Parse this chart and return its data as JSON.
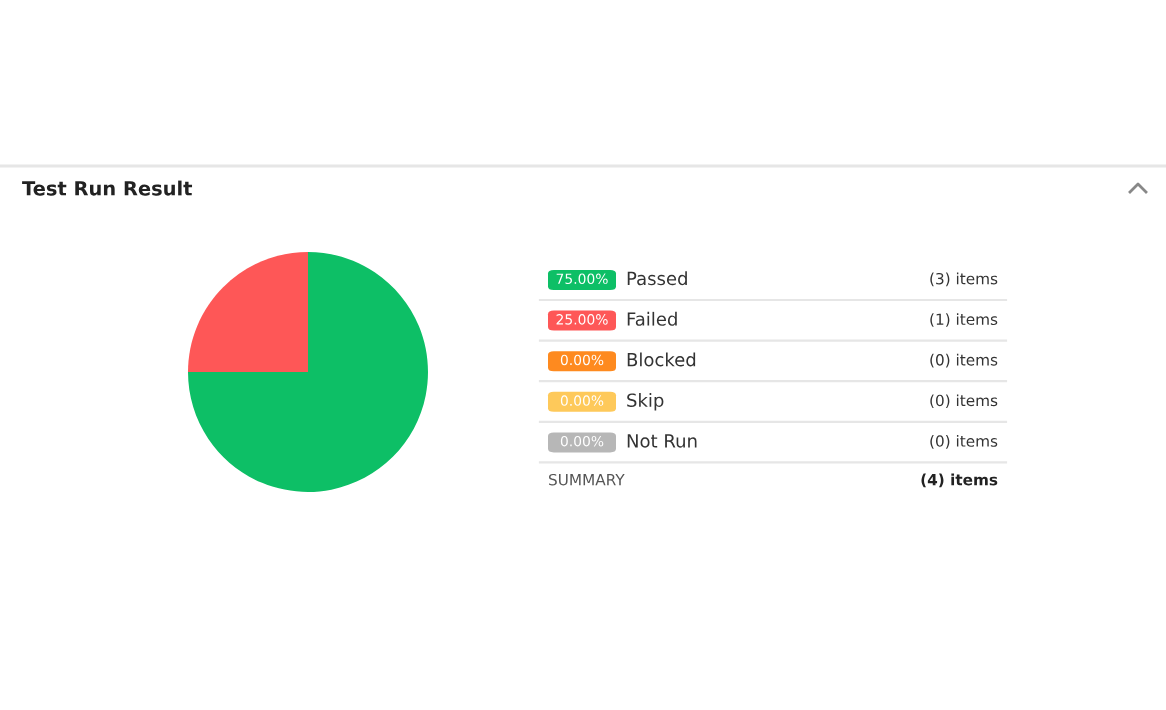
{
  "chart_data": {
    "type": "pie",
    "title": "Test Run Result",
    "categories": [
      "Passed",
      "Failed",
      "Blocked",
      "Skip",
      "Not Run"
    ],
    "values": [
      75,
      25,
      0,
      0,
      0
    ],
    "value_labels": [
      "75.00%",
      "25.00%",
      "0.00%",
      "0.00%",
      "0.00%"
    ],
    "colors": [
      "#0dbf66",
      "#fe5757",
      "#fe8a1f",
      "#fec95a",
      "#b7b7b7"
    ],
    "legend": "right",
    "annotations": [
      "(3) items",
      "(1) items",
      "(0) items",
      "(0) items",
      "(0) items",
      "SUMMARY",
      "(4) items"
    ]
  }
}
